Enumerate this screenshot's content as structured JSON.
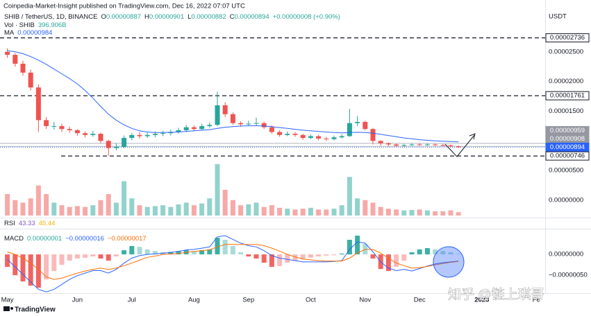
{
  "header": {
    "publisher": "Coinpedia-Market-Insight published on TradingView.com, Dec 16, 2022 07:07 UTC",
    "currency": "USDT",
    "watermark": "知乎 @链上琪哥",
    "brand": "TradingView"
  },
  "chart_data": [
    {
      "type": "candlestick",
      "symbol": "SHIB / TetherUS, 1D, BINANCE",
      "ohlc": [
        {
          "key": "O",
          "value": "0.00000887"
        },
        {
          "key": "H",
          "value": "0.00000901"
        },
        {
          "key": "L",
          "value": "0.00000882"
        },
        {
          "key": "C",
          "value": "0.00000894"
        }
      ],
      "change": "+0.00000008 (+0.90%)",
      "up_color": "#26a69a",
      "down_color": "#ef5350",
      "categories": [
        "May",
        null,
        null,
        null,
        null,
        null,
        null,
        null,
        null,
        "Jun",
        null,
        null,
        null,
        null,
        null,
        null,
        "Jul",
        null,
        null,
        null,
        null,
        null,
        null,
        null,
        "Aug",
        null,
        null,
        null,
        null,
        null,
        null,
        "Sep",
        null,
        null,
        null,
        null,
        null,
        null,
        null,
        "Oct",
        null,
        null,
        null,
        null,
        null,
        null,
        "Nov",
        null,
        null,
        null,
        null,
        null,
        null,
        "Dec",
        null,
        null,
        null,
        null,
        null,
        null,
        null,
        "2023",
        null,
        null,
        null,
        null,
        null,
        null,
        "Fe",
        null
      ],
      "open": [
        2.5e-05,
        2.45e-05,
        2.3e-05,
        2.15e-05,
        1.9e-05,
        1.35e-05,
        1.25e-05,
        1.25e-05,
        1.2e-05,
        1.18e-05,
        1.13e-05,
        1.1e-05,
        1.12e-05,
        1e-05,
        8.8e-06,
        9e-06,
        1.05e-05,
        1.1e-05,
        1.08e-05,
        1.1e-05,
        1.12e-05,
        1.13e-05,
        1.15e-05,
        1.18e-05,
        1.23e-05,
        1.2e-05,
        1.25e-05,
        1.27e-05,
        1.6e-05,
        1.45e-05,
        1.3e-05,
        1.28e-05,
        1.29e-05,
        1.3e-05,
        1.23e-05,
        1.15e-05,
        1.1e-05,
        1.12e-05,
        1.1e-05,
        1.05e-05,
        1.08e-05,
        1.04e-05,
        1.03e-05,
        1.06e-05,
        1.08e-05,
        1.3e-05,
        1.32e-05,
        1.2e-05,
        1e-05,
        9.6e-06,
        9.4e-06,
        9.2e-06,
        9.3e-06,
        9.4e-06,
        9.35e-06,
        9.4e-06,
        9.3e-06,
        9.25e-06,
        9.1e-06,
        null,
        null,
        null,
        null,
        null,
        null,
        null,
        null,
        null,
        null,
        null
      ],
      "high": [
        2.56e-05,
        2.48e-05,
        2.35e-05,
        2.2e-05,
        1.95e-05,
        1.4e-05,
        1.32e-05,
        1.29e-05,
        1.24e-05,
        1.2e-05,
        1.16e-05,
        1.17e-05,
        1.14e-05,
        1.02e-05,
        9.6e-06,
        1.09e-05,
        1.13e-05,
        1.15e-05,
        1.14e-05,
        1.16e-05,
        1.17e-05,
        1.19e-05,
        1.22e-05,
        1.27e-05,
        1.26e-05,
        1.29e-05,
        1.31e-05,
        1.83e-05,
        1.65e-05,
        1.48e-05,
        1.33e-05,
        1.34e-05,
        1.39e-05,
        1.32e-05,
        1.26e-05,
        1.18e-05,
        1.16e-05,
        1.15e-05,
        1.12e-05,
        1.11e-05,
        1.1e-05,
        1.07e-05,
        1.09e-05,
        1.11e-05,
        1.54e-05,
        1.42e-05,
        1.34e-05,
        1.22e-05,
        1.01e-05,
        9.75e-06,
        9.6e-06,
        9.5e-06,
        9.6e-06,
        9.65e-06,
        9.6e-06,
        9.55e-06,
        9.5e-06,
        9.4e-06,
        9.2e-06,
        null,
        null,
        null,
        null,
        null,
        null,
        null,
        null,
        null,
        null,
        null
      ],
      "low": [
        2.4e-05,
        2.25e-05,
        2.1e-05,
        1.85e-05,
        1.15e-05,
        1.2e-05,
        1.19e-05,
        1.15e-05,
        1.14e-05,
        1.09e-05,
        1.06e-05,
        1.07e-05,
        9.6e-06,
        7.5e-06,
        8.4e-06,
        8.8e-06,
        1.01e-05,
        1.04e-05,
        1.05e-05,
        1.06e-05,
        1.08e-05,
        1.09e-05,
        1.12e-05,
        1.15e-05,
        1.17e-05,
        1.18e-05,
        1.22e-05,
        1.25e-05,
        1.4e-05,
        1.27e-05,
        1.24e-05,
        1.25e-05,
        1.26e-05,
        1.2e-05,
        1.12e-05,
        1.07e-05,
        1.08e-05,
        1.07e-05,
        1.02e-05,
        1.03e-05,
        1.01e-05,
        1e-05,
        1.01e-05,
        1.04e-05,
        1.07e-05,
        1.25e-05,
        1.18e-05,
        9.4e-06,
        9.2e-06,
        9.1e-06,
        9e-06,
        9.05e-06,
        9.15e-06,
        9.2e-06,
        9.2e-06,
        9.15e-06,
        9.1e-06,
        8.9e-06,
        8.8e-06,
        null,
        null,
        null,
        null,
        null,
        null,
        null,
        null,
        null,
        null,
        null
      ],
      "close": [
        2.45e-05,
        2.3e-05,
        2.15e-05,
        1.9e-05,
        1.35e-05,
        1.25e-05,
        1.25e-05,
        1.2e-05,
        1.18e-05,
        1.13e-05,
        1.1e-05,
        1.12e-05,
        1e-05,
        8.8e-06,
        9e-06,
        1.05e-05,
        1.1e-05,
        1.08e-05,
        1.1e-05,
        1.12e-05,
        1.13e-05,
        1.15e-05,
        1.18e-05,
        1.23e-05,
        1.2e-05,
        1.25e-05,
        1.27e-05,
        1.6e-05,
        1.45e-05,
        1.3e-05,
        1.28e-05,
        1.29e-05,
        1.3e-05,
        1.23e-05,
        1.15e-05,
        1.1e-05,
        1.12e-05,
        1.1e-05,
        1.05e-05,
        1.08e-05,
        1.04e-05,
        1.03e-05,
        1.06e-05,
        1.08e-05,
        1.3e-05,
        1.32e-05,
        1.2e-05,
        1e-05,
        9.6e-06,
        9.4e-06,
        9.2e-06,
        9.3e-06,
        9.4e-06,
        9.35e-06,
        9.4e-06,
        9.3e-06,
        9.25e-06,
        9.1e-06,
        8.94e-06,
        null,
        null,
        null,
        null,
        null,
        null,
        null,
        null,
        null,
        null,
        null
      ],
      "ma": {
        "name": "MA",
        "legend_value": "0.00000984",
        "color": "#2962ff",
        "values": [
          2.52e-05,
          2.5e-05,
          2.47e-05,
          2.42e-05,
          2.36e-05,
          2.29e-05,
          2.21e-05,
          2.13e-05,
          2.05e-05,
          1.96e-05,
          1.85e-05,
          1.72e-05,
          1.58e-05,
          1.45e-05,
          1.35e-05,
          1.27e-05,
          1.21e-05,
          1.17e-05,
          1.15e-05,
          1.14e-05,
          1.14e-05,
          1.145e-05,
          1.15e-05,
          1.16e-05,
          1.17e-05,
          1.18e-05,
          1.19e-05,
          1.21e-05,
          1.23e-05,
          1.24e-05,
          1.25e-05,
          1.255e-05,
          1.255e-05,
          1.25e-05,
          1.24e-05,
          1.225e-05,
          1.21e-05,
          1.195e-05,
          1.18e-05,
          1.17e-05,
          1.16e-05,
          1.15e-05,
          1.14e-05,
          1.135e-05,
          1.14e-05,
          1.145e-05,
          1.14e-05,
          1.13e-05,
          1.11e-05,
          1.09e-05,
          1.07e-05,
          1.05e-05,
          1.035e-05,
          1.02e-05,
          1.01e-05,
          1e-05,
          9.95e-06,
          9.9e-06,
          9.84e-06,
          null,
          null,
          null,
          null,
          null,
          null,
          null,
          null,
          null,
          null,
          null
        ]
      },
      "levels": [
        {
          "value": 2.736e-05,
          "label": "0.00002736",
          "style": "dashed"
        },
        {
          "value": 1.761e-05,
          "label": "0.00001761",
          "style": "dashed"
        },
        {
          "value": 9.59e-06,
          "label": "0.00000959",
          "style": "gray"
        },
        {
          "value": 9.08e-06,
          "label": "0.00000908",
          "style": "gray"
        },
        {
          "value": 8.94e-06,
          "label": "0.00000894",
          "style": "last"
        },
        {
          "value": 7.46e-06,
          "label": "0.00000746",
          "style": "dashed"
        }
      ],
      "ylim": [
        -2.8e-06,
        3.28e-05
      ],
      "yticks": [
        {
          "value": 2.5e-05,
          "label": "0.00002500"
        },
        {
          "value": 2e-05,
          "label": "0.00002000"
        },
        {
          "value": 1.5e-05,
          "label": "0.00001500"
        },
        {
          "value": 5e-06,
          "label": "0.00000500"
        },
        {
          "value": 0,
          "label": "0.00000000"
        }
      ],
      "grid": false
    },
    {
      "type": "bar",
      "name": "Vol · SHIB",
      "legend_value": "396.906B",
      "up_color": "#26a69a",
      "down_color": "#ef5350",
      "ylim": [
        0,
        8000
      ],
      "values": [
        2500,
        1800,
        1500,
        2000,
        3500,
        2500,
        1500,
        1200,
        1000,
        1100,
        1000,
        1200,
        1800,
        2500,
        1500,
        4000,
        2000,
        1200,
        1000,
        1100,
        1200,
        1000,
        1300,
        1500,
        1200,
        1400,
        2000,
        6000,
        3000,
        1800,
        1200,
        1300,
        1500,
        1000,
        1200,
        900,
        800,
        700,
        800,
        900,
        700,
        700,
        800,
        1200,
        4500,
        2000,
        1800,
        1500,
        1000,
        800,
        700,
        600,
        650,
        700,
        600,
        500,
        500,
        600,
        396.906
      ]
    },
    {
      "type": "rsi",
      "name": "RSI",
      "legend_values": [
        "43.33",
        "45.44"
      ],
      "colors": [
        "#7e57c2",
        "#f4b400"
      ]
    },
    {
      "type": "macd",
      "name": "MACD",
      "legend_values": [
        "0.00000001",
        "−0.00000016",
        "−0.00000017"
      ],
      "up_color": "#26a69a",
      "down_color": "#ef5350",
      "histogram": [
        -3e-07,
        -5e-07,
        -6.5e-07,
        -7.5e-07,
        -8e-07,
        -6e-07,
        -4e-07,
        -2.5e-07,
        -1.5e-07,
        -1e-07,
        -8e-08,
        -5e-08,
        -1e-07,
        -1.5e-07,
        -5e-08,
        1e-07,
        2e-07,
        1.8e-07,
        1.2e-07,
        8e-08,
        5e-08,
        6e-08,
        8e-08,
        1e-07,
        8e-08,
        1e-07,
        1.2e-07,
        4e-07,
        3.5e-07,
        2e-07,
        5e-08,
        -5e-08,
        -1e-07,
        -2e-07,
        -3e-07,
        -2.8e-07,
        -2e-07,
        -1.5e-07,
        -1.2e-07,
        -8e-08,
        -5e-08,
        -3e-08,
        -2e-08,
        2e-08,
        3.5e-07,
        4.5e-07,
        2.5e-07,
        -1e-07,
        -3.5e-07,
        -4e-07,
        -3e-07,
        -1.5e-07,
        5e-08,
        1.2e-07,
        1.5e-07,
        1.2e-07,
        8e-08,
        5e-08,
        1e-08
      ],
      "macd": {
        "color": "#2962ff",
        "values": [
          -1.2e-07,
          -3e-07,
          -4.8e-07,
          -6.6e-07,
          -8.4e-07,
          -9e-07,
          -8.4e-07,
          -7.2e-07,
          -6e-07,
          -5.1e-07,
          -4.5e-07,
          -3.9e-07,
          -3.9e-07,
          -4.5e-07,
          -3.6e-07,
          -2.1e-07,
          -9e-08,
          -3e-08,
          0,
          1.2e-08,
          3e-08,
          4.8e-08,
          7.2e-08,
          1.08e-07,
          1.2e-07,
          1.5e-07,
          1.8e-07,
          4.2e-07,
          4.5e-07,
          3.6e-07,
          2.7e-07,
          2.1e-07,
          1.8e-07,
          9e-08,
          -3e-08,
          -9e-08,
          -1.2e-07,
          -1.5e-07,
          -1.8e-07,
          -1.8e-07,
          -1.8e-07,
          -1.8e-07,
          -1.68e-07,
          -1.5e-07,
          1.2e-07,
          3e-07,
          2.7e-07,
          6e-08,
          -1.8e-07,
          -3.3e-07,
          -3.9e-07,
          -3.6e-07,
          -4e-07,
          -3.4e-07,
          -2.8e-07,
          -2.3e-07,
          -2e-07,
          -1.8e-07,
          -1.6e-07
        ]
      },
      "signal": {
        "color": "#ff6d00",
        "values": [
          6e-08,
          0,
          -9e-08,
          -2.1e-07,
          -3.6e-07,
          -5.4e-07,
          -6e-07,
          -5.7e-07,
          -5.1e-07,
          -4.5e-07,
          -4e-07,
          -3.6e-07,
          -3.3e-07,
          -3.6e-07,
          -3.3e-07,
          -2.7e-07,
          -2.1e-07,
          -1.4e-07,
          -7e-08,
          -4e-08,
          0,
          1e-08,
          2e-08,
          5e-08,
          7e-08,
          9e-08,
          1.1e-07,
          1.8e-07,
          2.4e-07,
          2.4e-07,
          2.4e-07,
          2.4e-07,
          2.4e-07,
          2.1e-07,
          1.5e-07,
          8e-08,
          0,
          -6e-08,
          -1.1e-07,
          -1.3e-07,
          -1.5e-07,
          -1.6e-07,
          -1.6e-07,
          -1.6e-07,
          -9e-08,
          3e-08,
          1.2e-07,
          1.2e-07,
          3e-08,
          -9e-08,
          -2.1e-07,
          -2.7e-07,
          -3.3e-07,
          -3.2e-07,
          -2.9e-07,
          -2.5e-07,
          -2.2e-07,
          -1.9e-07,
          -1.7e-07
        ]
      },
      "ylim": [
        -9.3e-07,
        7e-07
      ],
      "yticks": [
        {
          "value": 0,
          "label": "0.00000000"
        },
        {
          "value": -5e-07,
          "label": "−0.00000050"
        }
      ]
    }
  ]
}
